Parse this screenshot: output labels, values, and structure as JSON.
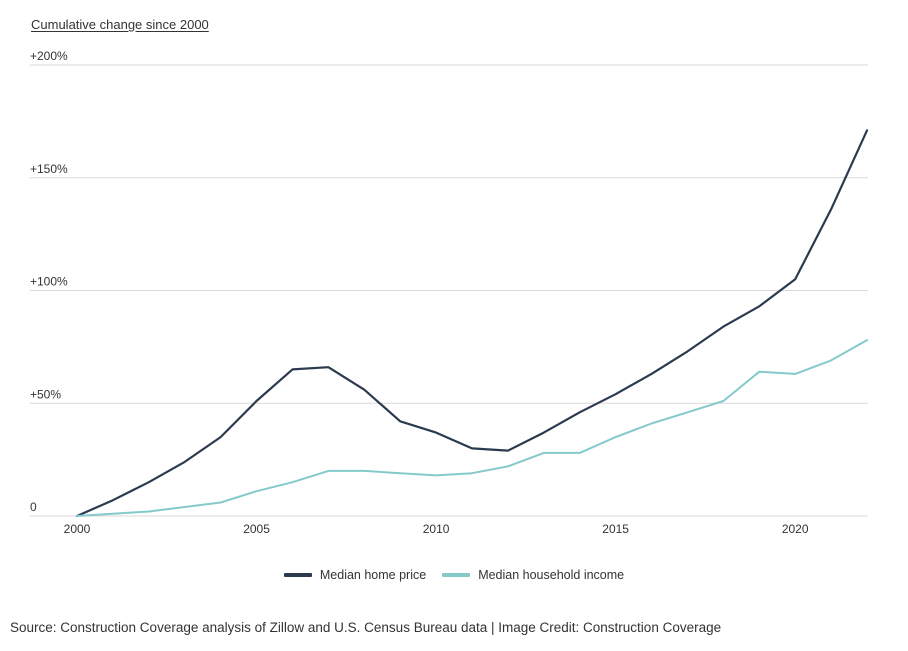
{
  "chart_data": {
    "type": "line",
    "title": "",
    "ylabel": "Cumulative change since 2000",
    "xlabel": "",
    "ylim": [
      0,
      200
    ],
    "xlim": [
      2000,
      2022
    ],
    "y_ticks": [
      {
        "value": 0,
        "label": "0"
      },
      {
        "value": 50,
        "label": "+50%"
      },
      {
        "value": 100,
        "label": "+100%"
      },
      {
        "value": 150,
        "label": "+150%"
      },
      {
        "value": 200,
        "label": "+200%"
      }
    ],
    "x_ticks": [
      {
        "value": 2000,
        "label": "2000"
      },
      {
        "value": 2005,
        "label": "2005"
      },
      {
        "value": 2010,
        "label": "2010"
      },
      {
        "value": 2015,
        "label": "2015"
      },
      {
        "value": 2020,
        "label": "2020"
      }
    ],
    "grid": true,
    "legend_position": "bottom",
    "x": [
      2000,
      2001,
      2002,
      2003,
      2004,
      2005,
      2006,
      2007,
      2008,
      2009,
      2010,
      2011,
      2012,
      2013,
      2014,
      2015,
      2016,
      2017,
      2018,
      2019,
      2020,
      2021,
      2022
    ],
    "series": [
      {
        "name": "Median home price",
        "color": "#2c3a4f",
        "values": [
          0,
          7,
          15,
          24,
          35,
          51,
          65,
          66,
          56,
          42,
          37,
          30,
          29,
          37,
          46,
          54,
          63,
          73,
          84,
          93,
          105,
          136,
          171
        ]
      },
      {
        "name": "Median household income",
        "color": "#86c9cc",
        "values": [
          0,
          1,
          2,
          4,
          6,
          11,
          15,
          20,
          20,
          19,
          18,
          19,
          22,
          28,
          28,
          35,
          41,
          46,
          51,
          64,
          63,
          69,
          78
        ]
      }
    ]
  },
  "source_text": "Source: Construction Coverage analysis of Zillow and U.S. Census Bureau data | Image Credit: Construction Coverage"
}
